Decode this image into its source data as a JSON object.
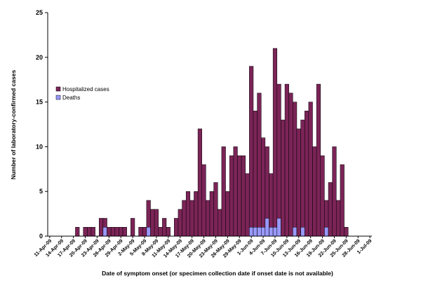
{
  "chart_data": {
    "type": "bar",
    "stacked": true,
    "xlabel": "Date of symptom onset (or specimen collection date if onset date is not available)",
    "ylabel": "Number of laboratory-confirmed cases",
    "ylim": [
      0,
      25
    ],
    "yticks": [
      0,
      5,
      10,
      15,
      20,
      25
    ],
    "grid": false,
    "legend_position": "left",
    "x_tick_labels": [
      "11-Apr-09",
      "14-Apr-09",
      "17-Apr-09",
      "20-Apr-09",
      "23-Apr-09",
      "26-Apr-09",
      "29-Apr-09",
      "2-May-09",
      "5-May-09",
      "8-May-09",
      "11-May-09",
      "14-May-09",
      "17-May-09",
      "20-May-09",
      "23-May-09",
      "26-May-09",
      "29-May-09",
      "1-Jun-09",
      "4-Jun-09",
      "7-Jun-09",
      "10-Jun-09",
      "13-Jun-09",
      "16-Jun-09",
      "19-Jun-09",
      "22-Jun-09",
      "25-Jun-09",
      "28-Jun-09",
      "1-Jul-09"
    ],
    "x_start_date": "2009-04-11",
    "series": [
      {
        "name": "Hospitalized cases",
        "color": "#7B2457",
        "values": [
          0,
          0,
          0,
          0,
          0,
          0,
          0,
          1,
          0,
          1,
          1,
          1,
          0,
          2,
          2,
          1,
          1,
          1,
          1,
          1,
          0,
          2,
          0,
          1,
          1,
          4,
          3,
          3,
          1,
          2,
          1,
          0,
          2,
          3,
          4,
          5,
          4,
          5,
          12,
          8,
          4,
          5,
          6,
          3,
          10,
          5,
          9,
          10,
          9,
          9,
          7,
          19,
          14,
          16,
          11,
          10,
          7,
          21,
          17,
          13,
          17,
          16,
          15,
          12,
          13,
          14,
          15,
          10,
          17,
          9,
          4,
          6,
          10,
          4,
          8,
          1,
          0,
          0,
          0,
          0,
          0,
          0
        ]
      },
      {
        "name": "Deaths",
        "color": "#9999FF",
        "values": [
          0,
          0,
          0,
          0,
          0,
          0,
          0,
          0,
          0,
          0,
          0,
          0,
          0,
          0,
          1,
          0,
          0,
          0,
          0,
          0,
          0,
          0,
          0,
          0,
          0,
          1,
          0,
          0,
          0,
          0,
          0,
          0,
          0,
          0,
          0,
          0,
          0,
          0,
          0,
          0,
          0,
          0,
          0,
          0,
          0,
          0,
          0,
          0,
          0,
          0,
          0,
          1,
          1,
          1,
          1,
          2,
          1,
          1,
          2,
          0,
          0,
          0,
          1,
          0,
          1,
          0,
          0,
          0,
          0,
          0,
          1,
          0,
          0,
          0,
          0,
          0,
          0,
          0,
          0,
          0,
          0,
          0
        ]
      }
    ]
  }
}
